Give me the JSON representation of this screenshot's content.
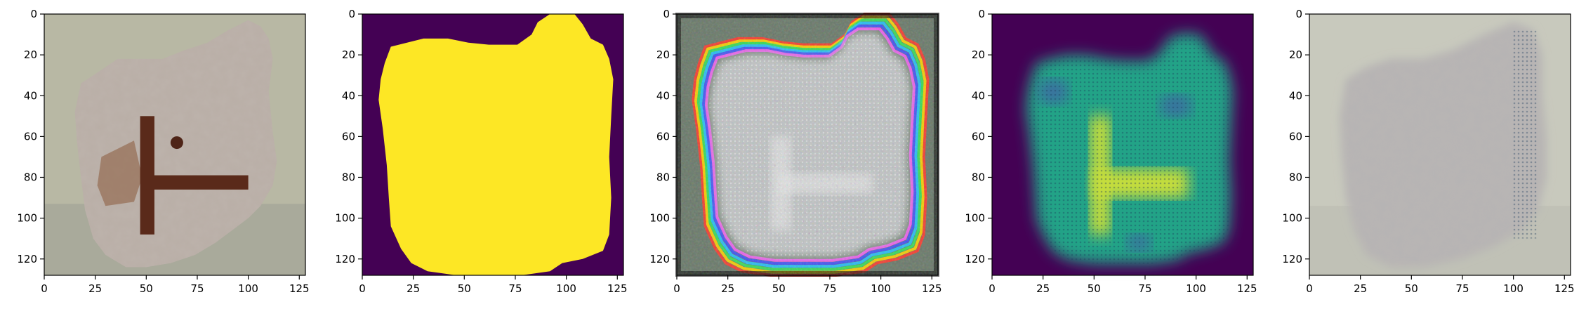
{
  "figure": {
    "panel_count": 5,
    "axis_range": {
      "x": [
        0,
        128
      ],
      "y": [
        0,
        128
      ]
    },
    "x_ticks": [
      0,
      25,
      50,
      75,
      100,
      125
    ],
    "y_ticks": [
      0,
      20,
      40,
      60,
      80,
      100,
      120
    ],
    "panels": [
      {
        "id": "panel-1",
        "content": "concrete-sample-photo",
        "colors": {
          "background": "#b8b8a4",
          "concrete": "#b9aea6",
          "rust": "#5a2a1a",
          "shadow": "#7a6e64"
        }
      },
      {
        "id": "panel-2",
        "content": "binary-mask",
        "colors": {
          "background": "#440154",
          "mask": "#fde725"
        }
      },
      {
        "id": "panel-3",
        "content": "reconstruction-artifacts",
        "colors": {
          "fill": "#bfc2c3",
          "stripes": [
            "#ff3b2f",
            "#ffd400",
            "#36e25a",
            "#24c3ff",
            "#3b4cff",
            "#ff4bff"
          ]
        }
      },
      {
        "id": "panel-4",
        "content": "heatmap",
        "colors": {
          "background": "#440154",
          "high": "#c8de3a",
          "mid": "#21a387",
          "low": "#3b6fa0"
        }
      },
      {
        "id": "panel-5",
        "content": "reconstructed-photo",
        "colors": {
          "background": "#c8c9bd",
          "fill": "#b6b4b4"
        }
      }
    ]
  }
}
